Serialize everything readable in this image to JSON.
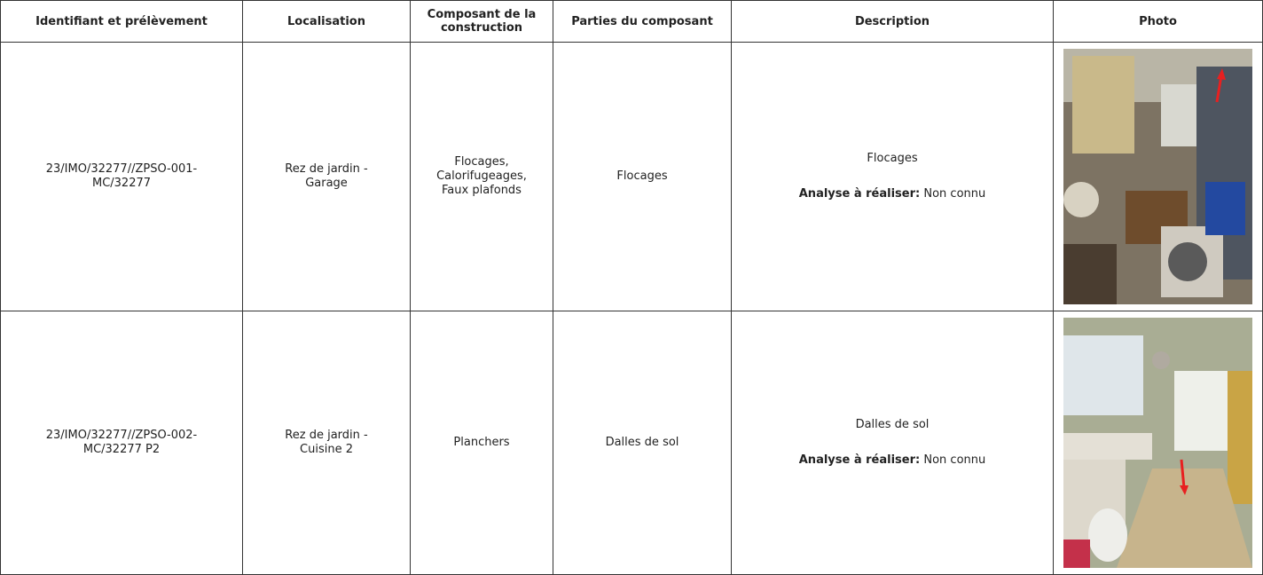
{
  "table": {
    "headers": [
      "Identifiant et prélèvement",
      "Localisation",
      "Composant de la construction",
      "Parties du composant",
      "Description",
      "Photo"
    ],
    "rows": [
      [
        "23/IMO/32277//ZPSO-001-MC/32277",
        "Rez de jardin - Garage",
        "Flocages, Calorifugeages, Faux plafonds",
        "Flocages",
        {
          "title": "Flocages",
          "analyse_label": "Analyse à réaliser:",
          "analyse_value": "Non connu"
        }
      ],
      [
        "23/IMO/32277//ZPSO-002-MC/32277 P2",
        "Rez de jardin - Cuisine 2",
        "Planchers",
        "Dalles de sol",
        {
          "title": "Dalles de sol",
          "analyse_label": "Analyse à réaliser:",
          "analyse_value": "Non connu"
        }
      ]
    ]
  }
}
